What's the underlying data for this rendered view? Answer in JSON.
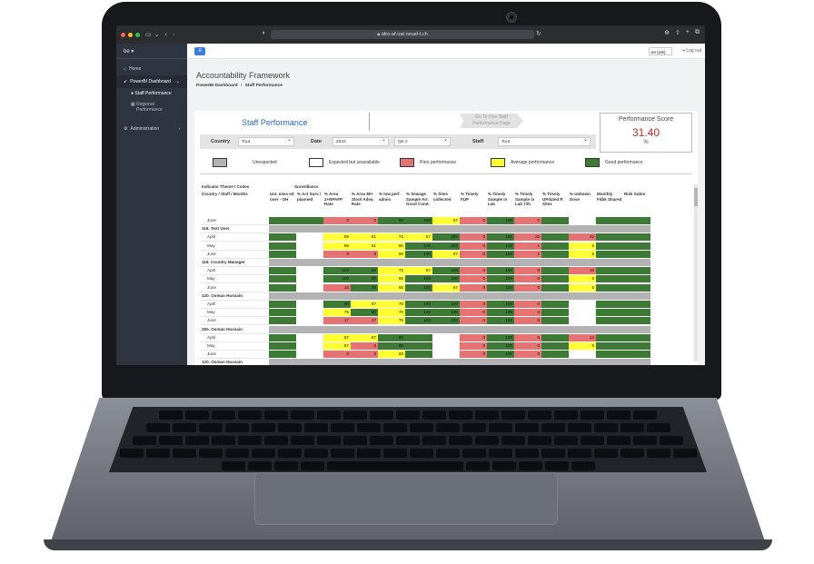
{
  "browser": {
    "url": "afro-af-uat.neuel-t.ch",
    "colors": {
      "close": "#ff5f57",
      "min": "#febc2e",
      "max": "#28c840"
    },
    "icons": [
      "sidebar-icon",
      "chevron-down-icon",
      "back-icon",
      "forward-icon",
      "shield-icon",
      "lock-icon",
      "reload-icon",
      "download-icon",
      "share-icon",
      "new-tab-icon",
      "tabs-icon"
    ]
  },
  "sidebar": {
    "user": "be",
    "items": [
      {
        "label": "Home",
        "icon": "home-icon"
      },
      {
        "label": "PowerBI Dashboard",
        "icon": "rocket-icon"
      },
      {
        "label": "Staff Performance",
        "icon": "user-icon"
      },
      {
        "label": "Regional Performance",
        "icon": "grid-icon"
      },
      {
        "label": "Administration",
        "icon": "gear-icon"
      }
    ]
  },
  "topbar": {
    "lang": "en (US)",
    "logout": "Log out"
  },
  "page": {
    "title": "Accountability Framework",
    "crumb_parent": "PowerBI Dashboard",
    "crumb_sep": "/",
    "crumb_current": "Staff Performance"
  },
  "report": {
    "title": "Staff Performance",
    "goto_line1": "Go To One Staff",
    "goto_line2": "Performance Page",
    "score": {
      "label": "Performance Score",
      "value": "31.40",
      "unit": "%"
    },
    "filters": {
      "country_label": "Country",
      "country_value": "Tout",
      "date_label": "Date",
      "year_value": "2022",
      "quarter_value": "Qtr 2",
      "staff_label": "Staff",
      "staff_value": "Tout"
    },
    "legend": [
      {
        "label": "Unexpected",
        "color": "#b3b3b3"
      },
      {
        "label": "Expected but unavailable",
        "color": "#ffffff"
      },
      {
        "label": "Poor performance",
        "color": "#e57373"
      },
      {
        "label": "Average performance",
        "color": "#ffff33"
      },
      {
        "label": "Good performance",
        "color": "#3d7a35"
      }
    ],
    "table": {
      "theme_label": "Indicator Theme / Codes",
      "group_label": "Surveillance",
      "dim_label": "Country / Staff / Months",
      "columns": [
        "Ust. miss ed over - OH",
        "% Act Surv / planned",
        "% Area 2+NPAFP Rate",
        "% Area 80+ Stool Adeq Rate",
        "% low perf. admin",
        "% Sewage Sample Arr. Good Cond.",
        "% Sites collected",
        "% Timely FUP",
        "% Timely Sample in Lab",
        "% Timely Sample in Lab 72h",
        "% Timely UPdated P. Sites",
        "% Unkown Dose",
        "Monthly Fdbk Shared",
        "Risk Subm"
      ],
      "rows": [
        {
          "label": "June",
          "type": "month",
          "cells": [
            "G",
            "G",
            "R:0",
            "R:0",
            "G:95",
            "G:100",
            "Y:67",
            "R:0",
            "G:100",
            "R:0",
            "G",
            "W",
            "G",
            "G"
          ]
        },
        {
          "label": "118. Test User",
          "type": "group",
          "cells": []
        },
        {
          "label": "April",
          "type": "month",
          "cells": [
            "G",
            "W",
            "Y:69",
            "Y:61",
            "Y:72",
            "Y:67",
            "G:200",
            "R:0",
            "G:100",
            "R:22",
            "G",
            "R:22",
            "G",
            "G"
          ]
        },
        {
          "label": "May",
          "type": "month",
          "cells": [
            "G",
            "W",
            "Y:59",
            "Y:61",
            "Y:65",
            "G:100",
            "G:200",
            "R:0",
            "G:100",
            "R:1",
            "G",
            "Y:6",
            "G",
            "G"
          ]
        },
        {
          "label": "June",
          "type": "month",
          "cells": [
            "G",
            "W",
            "R:9",
            "R:9",
            "Y:68",
            "G:100",
            "Y:67",
            "R:0",
            "G:100",
            "R:1",
            "G",
            "Y:5",
            "G",
            "G"
          ]
        },
        {
          "label": "119. Country Manager",
          "type": "group",
          "cells": []
        },
        {
          "label": "April",
          "type": "month",
          "cells": [
            "G",
            "W",
            "G:100",
            "G:80",
            "Y:72",
            "Y:67",
            "G:100",
            "R:0",
            "G:100",
            "R:0",
            "G",
            "R:16",
            "G",
            "G"
          ]
        },
        {
          "label": "May",
          "type": "month",
          "cells": [
            "G",
            "W",
            "G:100",
            "G:80",
            "Y:65",
            "G:100",
            "G:100",
            "R:0",
            "G:100",
            "R:0",
            "G",
            "Y:6",
            "G",
            "G"
          ]
        },
        {
          "label": "June",
          "type": "month",
          "cells": [
            "G",
            "W",
            "R:15",
            "G:38",
            "Y:68",
            "G:100",
            "Y:67",
            "R:0",
            "G:100",
            "R:0",
            "G",
            "Y:5",
            "G",
            "G"
          ]
        },
        {
          "label": "120. Osman Hussain",
          "type": "group",
          "cells": []
        },
        {
          "label": "April",
          "type": "month",
          "cells": [
            "G",
            "W",
            "G:80",
            "Y:67",
            "Y:70",
            "G:100",
            "G:100",
            "R:0",
            "G:100",
            "R:0",
            "G",
            "W",
            "G",
            "G"
          ]
        },
        {
          "label": "May",
          "type": "month",
          "cells": [
            "G",
            "W",
            "Y:75",
            "G:80",
            "Y:70",
            "G:100",
            "G:100",
            "R:0",
            "G:100",
            "R:3",
            "G",
            "W",
            "G",
            "G"
          ]
        },
        {
          "label": "June",
          "type": "month",
          "cells": [
            "G",
            "W",
            "R:17",
            "R:17",
            "Y:75",
            "G:100",
            "G:100",
            "R:0",
            "G:100",
            "R:0",
            "G",
            "W",
            "G",
            "G"
          ]
        },
        {
          "label": "250. Osman Hussain",
          "type": "group",
          "cells": []
        },
        {
          "label": "April",
          "type": "month",
          "cells": [
            "G",
            "W",
            "Y:67",
            "Y:67",
            "G:80",
            "G",
            "W",
            "R:0",
            "G:100",
            "R:0",
            "G",
            "R:14",
            "G",
            "G"
          ]
        },
        {
          "label": "May",
          "type": "month",
          "cells": [
            "G",
            "W",
            "Y:67",
            "R:0",
            "G:80",
            "G",
            "W",
            "R:0",
            "G:100",
            "R:0",
            "G",
            "Y:6",
            "G",
            "G"
          ]
        },
        {
          "label": "June",
          "type": "month",
          "cells": [
            "G",
            "W",
            "R:0",
            "R:0",
            "Y:69",
            "G",
            "W",
            "R:0",
            "G:100",
            "R:0",
            "G",
            "W",
            "G",
            "G"
          ]
        },
        {
          "label": "120. Osman Hussain",
          "type": "group",
          "cells": []
        }
      ]
    }
  }
}
